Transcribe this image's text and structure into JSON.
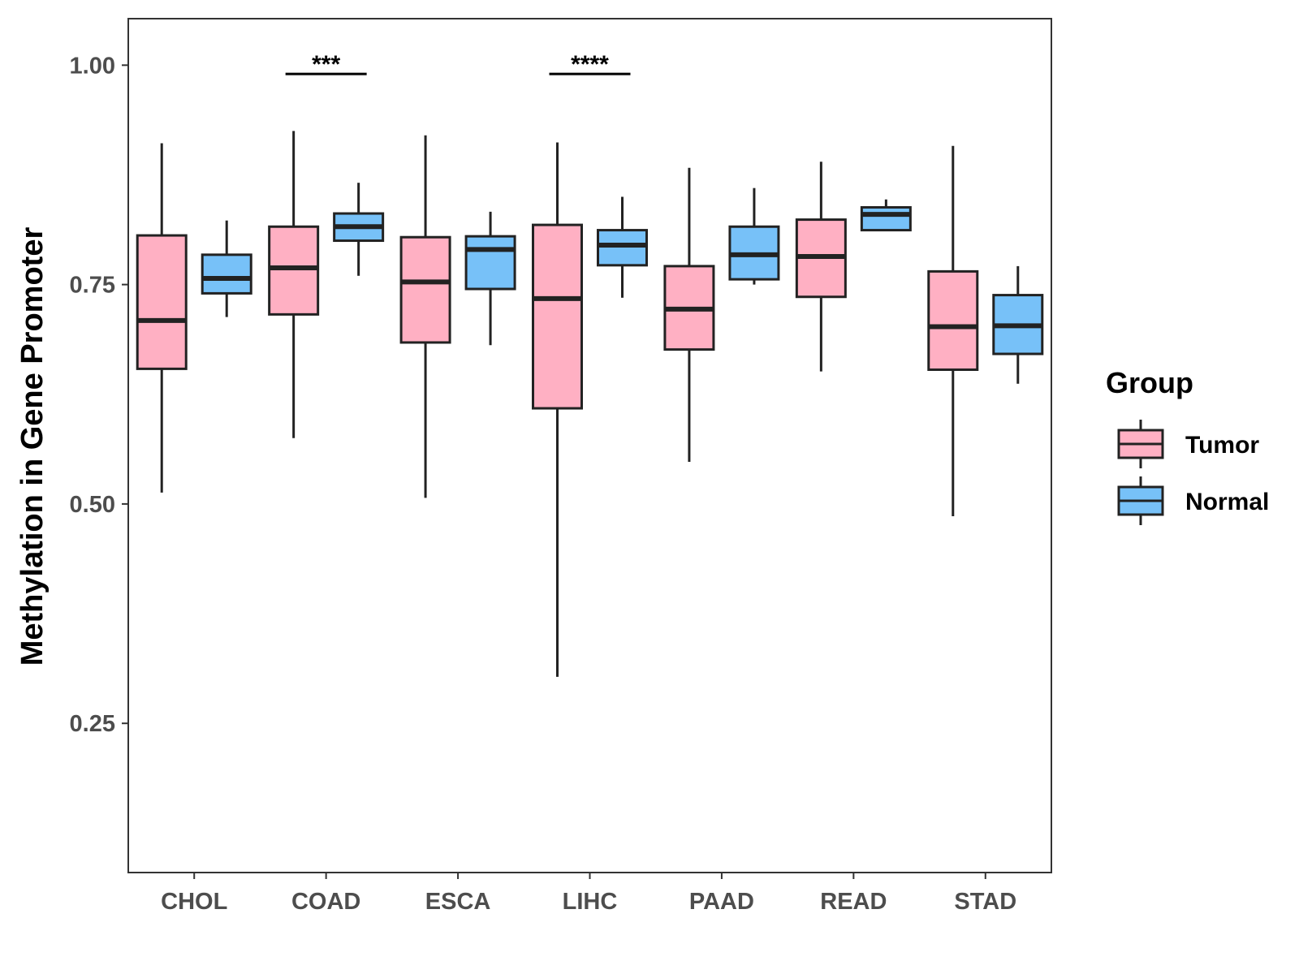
{
  "chart_data": {
    "type": "boxplot",
    "title": "",
    "xlabel": "",
    "ylabel": "Methylation in Gene Promoter",
    "ylim": [
      0.08,
      1.053
    ],
    "yticks": [
      0.25,
      0.5,
      0.75,
      1.0
    ],
    "ytick_labels": [
      "0.25",
      "0.50",
      "0.75",
      "1.00"
    ],
    "categories": [
      "CHOL",
      "COAD",
      "ESCA",
      "LIHC",
      "PAAD",
      "READ",
      "STAD"
    ],
    "legend": {
      "title": "Group",
      "position": "right",
      "entries": [
        {
          "name": "Tumor",
          "color": "#FFB0C3"
        },
        {
          "name": "Normal",
          "color": "#77C1F8"
        }
      ]
    },
    "series": [
      {
        "name": "Tumor",
        "color": "#FFB0C3",
        "boxes": [
          {
            "min": 0.513,
            "q1": 0.654,
            "median": 0.709,
            "q3": 0.806,
            "max": 0.911
          },
          {
            "min": 0.575,
            "q1": 0.716,
            "median": 0.769,
            "q3": 0.816,
            "max": 0.925
          },
          {
            "min": 0.507,
            "q1": 0.684,
            "median": 0.753,
            "q3": 0.804,
            "max": 0.92
          },
          {
            "min": 0.303,
            "q1": 0.609,
            "median": 0.734,
            "q3": 0.818,
            "max": 0.912
          },
          {
            "min": 0.548,
            "q1": 0.676,
            "median": 0.722,
            "q3": 0.771,
            "max": 0.883
          },
          {
            "min": 0.651,
            "q1": 0.736,
            "median": 0.782,
            "q3": 0.824,
            "max": 0.89
          },
          {
            "min": 0.486,
            "q1": 0.653,
            "median": 0.702,
            "q3": 0.765,
            "max": 0.908
          }
        ]
      },
      {
        "name": "Normal",
        "color": "#77C1F8",
        "boxes": [
          {
            "min": 0.713,
            "q1": 0.74,
            "median": 0.757,
            "q3": 0.784,
            "max": 0.823
          },
          {
            "min": 0.76,
            "q1": 0.8,
            "median": 0.816,
            "q3": 0.831,
            "max": 0.866
          },
          {
            "min": 0.681,
            "q1": 0.745,
            "median": 0.79,
            "q3": 0.805,
            "max": 0.833
          },
          {
            "min": 0.735,
            "q1": 0.772,
            "median": 0.795,
            "q3": 0.812,
            "max": 0.85
          },
          {
            "min": 0.75,
            "q1": 0.756,
            "median": 0.784,
            "q3": 0.816,
            "max": 0.86
          },
          {
            "min": 0.812,
            "q1": 0.812,
            "median": 0.83,
            "q3": 0.838,
            "max": 0.847
          },
          {
            "min": 0.637,
            "q1": 0.671,
            "median": 0.703,
            "q3": 0.738,
            "max": 0.771
          }
        ]
      }
    ],
    "annotations": [
      {
        "category": "COAD",
        "label": "***",
        "y": 0.99
      },
      {
        "category": "LIHC",
        "label": "****",
        "y": 0.99
      }
    ]
  }
}
